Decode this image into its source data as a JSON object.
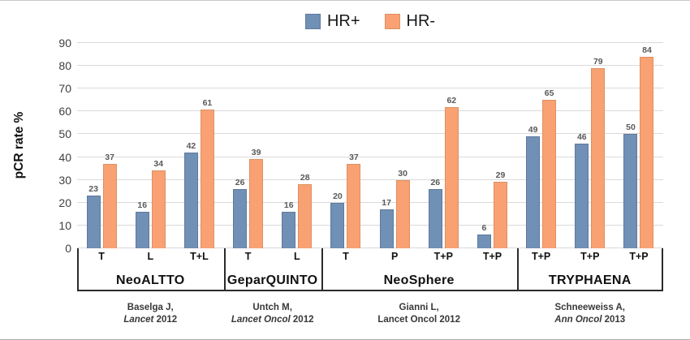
{
  "chart_data": {
    "type": "bar",
    "title": "",
    "ylabel": "pCR rate %",
    "ylim": [
      0,
      90
    ],
    "ytick_step": 10,
    "grid": true,
    "legend_position": "top-center",
    "legend": [
      {
        "name": "HR+",
        "color": "#7090b6"
      },
      {
        "name": "HR-",
        "color": "#f9a173"
      }
    ],
    "series_names": [
      "HR+",
      "HR-"
    ],
    "groups": [
      {
        "trial": "NeoALTTO",
        "citation_name": "Baselga J,",
        "journal": "Lancet",
        "year": "2012",
        "journal_italic": true,
        "bars": [
          {
            "label": "T",
            "hr_plus": 23,
            "hr_minus": 37
          },
          {
            "label": "L",
            "hr_plus": 16,
            "hr_minus": 34
          },
          {
            "label": "T+L",
            "hr_plus": 42,
            "hr_minus": 61
          }
        ]
      },
      {
        "trial": "GeparQUINTO",
        "citation_name": "Untch M,",
        "journal": "Lancet Oncol",
        "year": "2012",
        "journal_italic": true,
        "bars": [
          {
            "label": "T",
            "hr_plus": 26,
            "hr_minus": 39
          },
          {
            "label": "L",
            "hr_plus": 16,
            "hr_minus": 28
          }
        ]
      },
      {
        "trial": "NeoSphere",
        "citation_name": "Gianni L,",
        "journal": "Lancet Oncol",
        "year": "2012",
        "journal_italic": false,
        "bars": [
          {
            "label": "T",
            "hr_plus": 20,
            "hr_minus": 37
          },
          {
            "label": "P",
            "hr_plus": 17,
            "hr_minus": 30
          },
          {
            "label": "T+P",
            "hr_plus": 26,
            "hr_minus": 62
          },
          {
            "label": "T+P",
            "hr_plus": 6,
            "hr_minus": 29
          }
        ]
      },
      {
        "trial": "TRYPHAENA",
        "citation_name": "Schneeweiss A,",
        "journal": "Ann Oncol",
        "year": "2013",
        "journal_italic": true,
        "bars": [
          {
            "label": "T+P",
            "hr_plus": 49,
            "hr_minus": 65
          },
          {
            "label": "T+P",
            "hr_plus": 46,
            "hr_minus": 79
          },
          {
            "label": "T+P",
            "hr_plus": 50,
            "hr_minus": 84
          }
        ]
      }
    ],
    "colors": {
      "hr_plus_fill": "#7090b6",
      "hr_plus_border": "#60799c",
      "hr_minus_fill": "#f9a173",
      "hr_minus_border": "#dd9062",
      "gridline": "#dadada",
      "value_label": "#595959",
      "bracket": "#2b2b2b"
    }
  }
}
